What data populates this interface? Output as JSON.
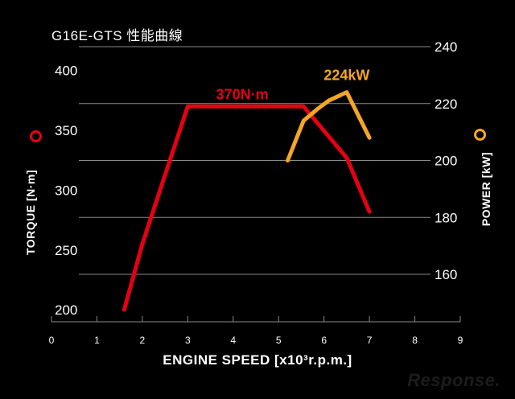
{
  "chart_data": {
    "type": "line",
    "title": "G16E-GTS 性能曲線",
    "xlabel": "ENGINE SPEED [x10³r.p.m.]",
    "xlim": [
      0,
      9
    ],
    "x_ticks": [
      "0",
      "1",
      "2",
      "3",
      "4",
      "5",
      "6",
      "7",
      "8",
      "9"
    ],
    "y_left": {
      "label": "TORQUE [N·m]",
      "lim": [
        190,
        420
      ],
      "ticks": [
        "200",
        "250",
        "300",
        "350",
        "400"
      ]
    },
    "y_right": {
      "label": "POWER [kW]",
      "lim": [
        143.33,
        240
      ],
      "ticks": [
        "160",
        "180",
        "200",
        "220",
        "240"
      ]
    },
    "grid": true,
    "series": [
      {
        "axis": "left",
        "color": "#e60012",
        "points": [
          [
            1.6,
            200
          ],
          [
            2.0,
            255
          ],
          [
            2.45,
            307
          ],
          [
            3.0,
            370
          ],
          [
            5.55,
            370
          ],
          [
            6.5,
            327
          ],
          [
            7.0,
            282
          ]
        ],
        "peak_label": "370N·m",
        "peak_label_at": [
          4.2,
          380
        ]
      },
      {
        "axis": "right",
        "color": "#f5a623",
        "points": [
          [
            5.2,
            200
          ],
          [
            5.55,
            214
          ],
          [
            5.85,
            218
          ],
          [
            6.1,
            221
          ],
          [
            6.5,
            224
          ],
          [
            7.0,
            208
          ]
        ],
        "peak_label": "224kW",
        "peak_label_at": [
          6.5,
          230
        ]
      }
    ],
    "legend": {
      "torque_color": "#e60012",
      "power_color": "#f5a623"
    }
  },
  "watermark": "Response."
}
